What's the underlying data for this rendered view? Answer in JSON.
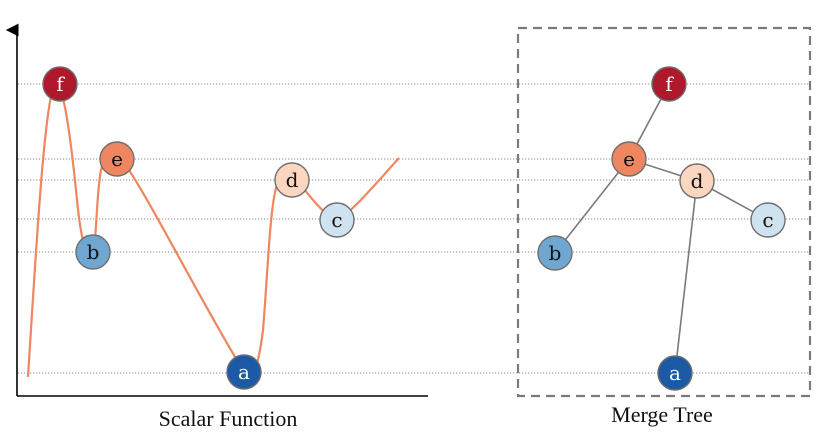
{
  "captions": {
    "left": "Scalar Function",
    "right": "Merge Tree"
  },
  "nodes": {
    "f": {
      "label": "f",
      "fill": "#b0182c",
      "text": "#ffffff"
    },
    "e": {
      "label": "e",
      "fill": "#ee8660",
      "text": "#111111"
    },
    "d": {
      "label": "d",
      "fill": "#fbd6c1",
      "text": "#111111"
    },
    "c": {
      "label": "c",
      "fill": "#cfe2ef",
      "text": "#111111"
    },
    "b": {
      "label": "b",
      "fill": "#6fa7d1",
      "text": "#111111"
    },
    "a": {
      "label": "a",
      "fill": "#1d5aa6",
      "text": "#ffffff"
    }
  },
  "tree_edges": [
    [
      "f",
      "e"
    ],
    [
      "e",
      "b"
    ],
    [
      "e",
      "d"
    ],
    [
      "d",
      "c"
    ],
    [
      "d",
      "a"
    ]
  ],
  "colors": {
    "curve": "#ee8660",
    "guide": "#8a8a8a",
    "axis": "#000000",
    "tree_edge": "#7a7a7a",
    "box": "#7a7a7a",
    "node_stroke": "#6e6e6e"
  }
}
